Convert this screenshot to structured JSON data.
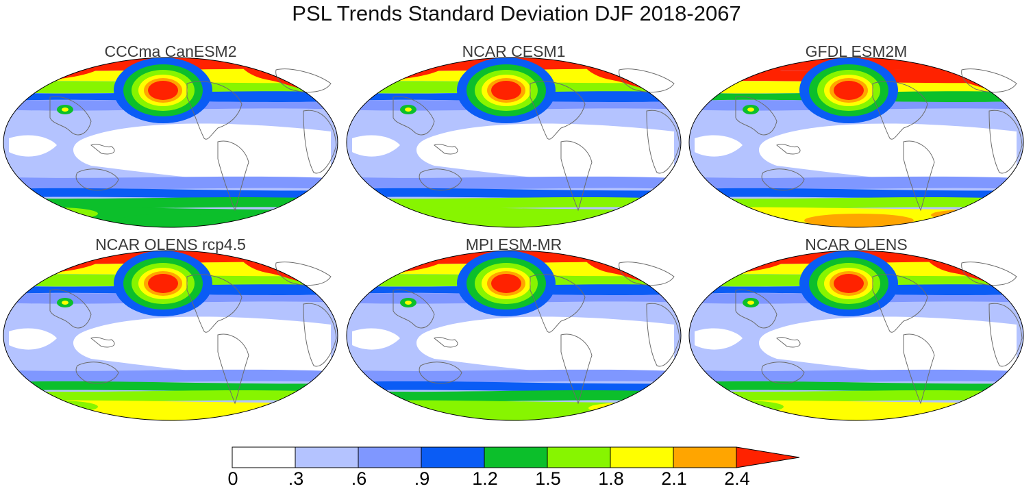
{
  "title": "PSL Trends Standard Deviation DJF 2018-2067",
  "panels": [
    {
      "title": "CCCma CanESM2",
      "variant": 0
    },
    {
      "title": "NCAR CESM1",
      "variant": 1
    },
    {
      "title": "GFDL ESM2M",
      "variant": 2
    },
    {
      "title": "NCAR OLENS rcp4.5",
      "variant": 3
    },
    {
      "title": "MPI ESM-MR",
      "variant": 4
    },
    {
      "title": "NCAR OLENS",
      "variant": 5
    }
  ],
  "colorbar": {
    "levels": [
      "0",
      ".3",
      ".6",
      ".9",
      "1.2",
      "1.5",
      "1.8",
      "2.1",
      "2.4"
    ],
    "colors": [
      "#ffffff",
      "#b4c3ff",
      "#7f97ff",
      "#0a5cf5",
      "#0cbf2b",
      "#87f500",
      "#ffff00",
      "#ffa500",
      "#ff2200"
    ]
  },
  "colors": {
    "coast": "#6b6b6b",
    "border": "#000000"
  }
}
